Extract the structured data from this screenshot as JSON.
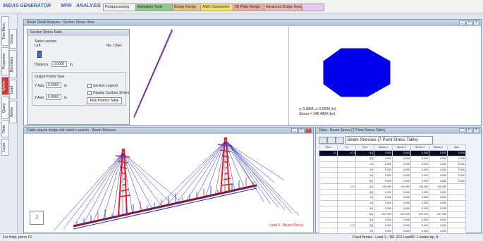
{
  "toolbar": {
    "app_tabs": [
      "MIDAS",
      "GENERATOR",
      "MPR",
      "ANALYSIS"
    ],
    "items": [
      {
        "label": "Postprocessing",
        "color": "#f2f2f2"
      },
      {
        "label": "Animation Tools",
        "color": "#8fc98a"
      },
      {
        "label": "Bridge Design",
        "color": "#e8c27f"
      },
      {
        "label": "AISC Connection",
        "color": "#f5e070"
      },
      {
        "label": "2D Plate Design",
        "color": "#f0a6a0"
      },
      {
        "label": "Advanced Bridge Design",
        "color": "#f4b6b1"
      },
      {
        "label": "",
        "color": "#e7c9f2"
      }
    ]
  },
  "sidebar": {
    "left_tabs": [
      "Tree Menu",
      "Properties",
      "Works",
      "Query",
      "Table",
      "Layer"
    ],
    "right_tabs": [
      "Group",
      "Boundary",
      "Load",
      "Works"
    ]
  },
  "section_window": {
    "title": "Beam Detail Analysis - Section Stress View",
    "annotation_line1": "y: 0.3858, z: 0.0000 (in)",
    "annotation_line2": "Stress = 148.4800 (ksi)"
  },
  "dialog": {
    "title": "Section Stress Ratio",
    "slider_label": "Select section",
    "slider_left": "Left",
    "slider_right": "No. 1/Sec",
    "distance_label": "Distance",
    "distance_value": "0.0000",
    "distance_unit": "in",
    "output_group": "Output Points Type",
    "yaxis_label": "Y Axis",
    "yaxis_value": "0.0000",
    "yaxis_unit": "in",
    "zaxis_label": "Z Axis",
    "zaxis_value": "0.0000",
    "zaxis_unit": "in",
    "opt1": "Section Legend",
    "opt2": "Display Contour Stress",
    "apply_button": "Pick Point in Table"
  },
  "model_window": {
    "title": "Cable stayed bridge with steel-c section - Beam Stresses",
    "legend_text": "Load 1 : Beam Stress"
  },
  "table_window": {
    "title": "Table : Beam Stress (7-Point Stress Table)",
    "tab_label": "Beam Stresses (7-Point Stress Table)",
    "columns": [
      "Elem",
      "Ld",
      "Part",
      "Stress 1",
      "Stress 2",
      "Stress 3",
      "Stress 4",
      "Max"
    ],
    "rows": [
      [
        "11",
        "LC1",
        "I[1]",
        "0.000",
        "0.000",
        "0.000",
        "0.000",
        "0.000"
      ],
      [
        "",
        "",
        "I[2]",
        "0.000",
        "0.000",
        "0.000",
        "0.000",
        "0.000"
      ],
      [
        "",
        "",
        "1/4",
        "0.000",
        "0.000",
        "0.000",
        "0.000",
        "0.000"
      ],
      [
        "",
        "",
        "2/4",
        "0.000",
        "0.000",
        "0.000",
        "0.000",
        "0.000"
      ],
      [
        "",
        "",
        "3/4",
        "0.000",
        "0.000",
        "0.000",
        "0.000",
        "0.000"
      ],
      [
        "",
        "",
        "J[1]",
        "0.000",
        "0.000",
        "0.000",
        "0.000",
        "0.000"
      ],
      [
        "",
        "LC2",
        "I[1]",
        "148.480",
        "148.480",
        "148.480",
        "148.480",
        ""
      ],
      [
        "",
        "",
        "I[2]",
        "0.000",
        "0.000",
        "0.000",
        "0.000",
        ""
      ],
      [
        "",
        "",
        "1/4",
        "0.000",
        "0.000",
        "0.000",
        "0.000",
        ""
      ],
      [
        "",
        "",
        "2/4",
        "0.000",
        "0.000",
        "0.000",
        "0.000",
        ""
      ],
      [
        "",
        "",
        "3/4",
        "0.000",
        "0.000",
        "0.000",
        "0.000",
        ""
      ],
      [
        "",
        "",
        "J[1]",
        "-207.130",
        "-207.130",
        "-207.130",
        "-207.130",
        ""
      ],
      [
        "",
        "",
        "I[1]",
        "0.000",
        "0.000",
        "0.000",
        "0.000",
        ""
      ],
      [
        "",
        "LC3",
        "I[2]",
        "0.000",
        "0.000",
        "0.000",
        "0.000",
        ""
      ],
      [
        "",
        "",
        "1/4",
        "0.000",
        "0.000",
        "0.000",
        "0.000",
        ""
      ]
    ]
  },
  "status": {
    "left": "For Help, press F1",
    "right": "Fixed Nodes : Load 1 : 151-212 LoadID: 1 nodes  kip, ft"
  },
  "colors": {
    "stress_red": "#e02020",
    "stress_blue": "#1a2ad8",
    "section_fill": "#0000ee"
  }
}
